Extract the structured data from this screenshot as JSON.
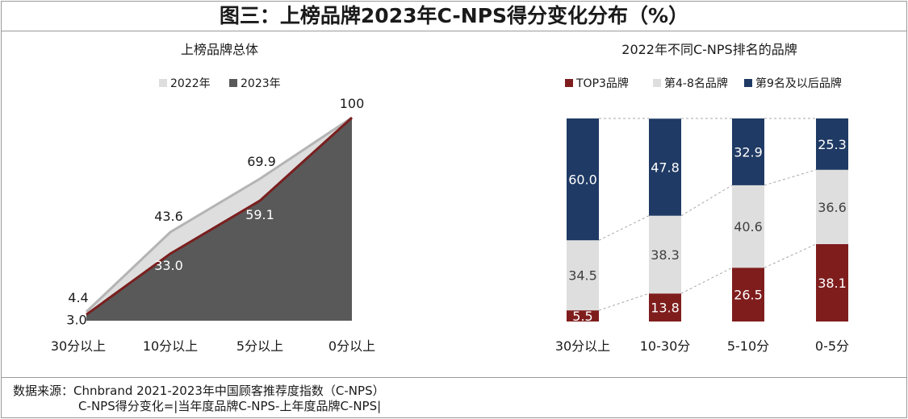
{
  "title": "图三：上榜品牌2023年C-NPS得分变化分布（%）",
  "colors": {
    "y2022_fill": "#dedede",
    "y2022_line": "#b4b4b4",
    "y2023_fill": "#595959",
    "y2023_line": "#7a1f1f",
    "top3": "#7f1d1d",
    "mid": "#dedede",
    "rest": "#1f3a64"
  },
  "chart_data": [
    {
      "type": "area",
      "title": "上榜品牌总体",
      "categories": [
        "30分以上",
        "10分以上",
        "5分以上",
        "0分以上"
      ],
      "series": [
        {
          "name": "2022年",
          "values": [
            4.4,
            43.6,
            69.9,
            100
          ]
        },
        {
          "name": "2023年",
          "values": [
            3.0,
            33.0,
            59.1,
            100
          ]
        }
      ],
      "ylim": [
        0,
        100
      ],
      "grid": false,
      "legend": "top"
    },
    {
      "type": "bar",
      "stacked": true,
      "title": "2022年不同C-NPS排名的品牌",
      "categories": [
        "30分以上",
        "10-30分",
        "5-10分",
        "0-5分"
      ],
      "series": [
        {
          "name": "TOP3品牌",
          "values": [
            5.5,
            13.8,
            26.5,
            38.1
          ]
        },
        {
          "name": "第4-8名品牌",
          "values": [
            34.5,
            38.3,
            40.6,
            36.6
          ]
        },
        {
          "name": "第9名及以后品牌",
          "values": [
            60.0,
            47.8,
            32.9,
            25.3
          ]
        }
      ],
      "ylim": [
        0,
        100
      ],
      "grid": false,
      "legend": "top"
    }
  ],
  "source": {
    "line1": "数据来源：Chnbrand 2021-2023年中国顾客推荐度指数（C-NPS）",
    "line2": "                 C-NPS得分变化=|当年度品牌C-NPS-上年度品牌C-NPS|"
  }
}
